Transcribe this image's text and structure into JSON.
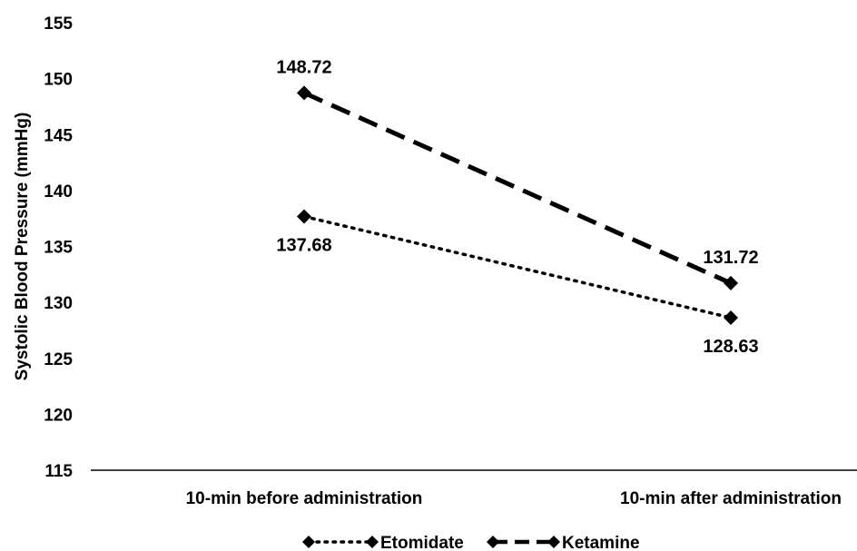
{
  "chart_data": {
    "type": "line",
    "categories": [
      "10-min before administration",
      "10-min after administration"
    ],
    "series": [
      {
        "name": "Etomidate",
        "values": [
          137.68,
          128.63
        ],
        "labels": [
          "137.68",
          "128.63"
        ],
        "line_style": "dotted",
        "marker": "diamond",
        "color": "#000000"
      },
      {
        "name": "Ketamine",
        "values": [
          148.72,
          131.72
        ],
        "labels": [
          "148.72",
          "131.72"
        ],
        "line_style": "dashed",
        "marker": "diamond",
        "color": "#000000"
      }
    ],
    "xlabel": "",
    "ylabel": "Systolic Blood Pressure (mmHg)",
    "ylim": [
      115,
      155
    ],
    "yticks": [
      115,
      120,
      125,
      130,
      135,
      140,
      145,
      150,
      155
    ],
    "grid": false,
    "legend": "bottom"
  }
}
